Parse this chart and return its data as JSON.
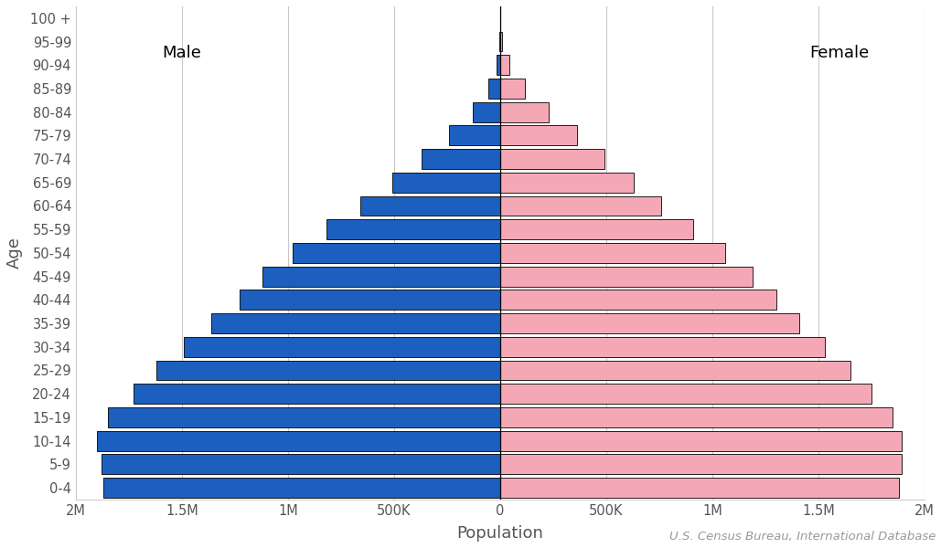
{
  "age_groups": [
    "0-4",
    "5-9",
    "10-14",
    "15-19",
    "20-24",
    "25-29",
    "30-34",
    "35-39",
    "40-44",
    "45-49",
    "50-54",
    "55-59",
    "60-64",
    "65-69",
    "70-74",
    "75-79",
    "80-84",
    "85-89",
    "90-94",
    "95-99",
    "100 +"
  ],
  "male": [
    1870000,
    1880000,
    1900000,
    1850000,
    1730000,
    1620000,
    1490000,
    1360000,
    1230000,
    1120000,
    980000,
    820000,
    660000,
    510000,
    370000,
    240000,
    130000,
    55000,
    17000,
    4000,
    600
  ],
  "female": [
    1880000,
    1890000,
    1890000,
    1850000,
    1750000,
    1650000,
    1530000,
    1410000,
    1300000,
    1190000,
    1060000,
    910000,
    760000,
    630000,
    490000,
    360000,
    230000,
    115000,
    42000,
    10000,
    1500
  ],
  "male_color": "#1C5FBF",
  "female_color": "#F4A8B5",
  "male_edgecolor": "#000000",
  "female_edgecolor": "#000000",
  "xlim": 2000000,
  "xtick_values": [
    -2000000,
    -1500000,
    -1000000,
    -500000,
    0,
    500000,
    1000000,
    1500000,
    2000000
  ],
  "xtick_labels": [
    "2M",
    "1.5M",
    "1M",
    "500K",
    "0",
    "500K",
    "1M",
    "1.5M",
    "2M"
  ],
  "xlabel": "Population",
  "ylabel": "Age",
  "male_label": "Male",
  "female_label": "Female",
  "source_text": "U.S. Census Bureau, International Database",
  "bg_color": "#FFFFFF",
  "grid_color": "#C8C8C8",
  "bar_height": 0.85,
  "label_fontsize": 13,
  "tick_fontsize": 10.5,
  "anno_fontsize": 13,
  "source_fontsize": 9.5
}
